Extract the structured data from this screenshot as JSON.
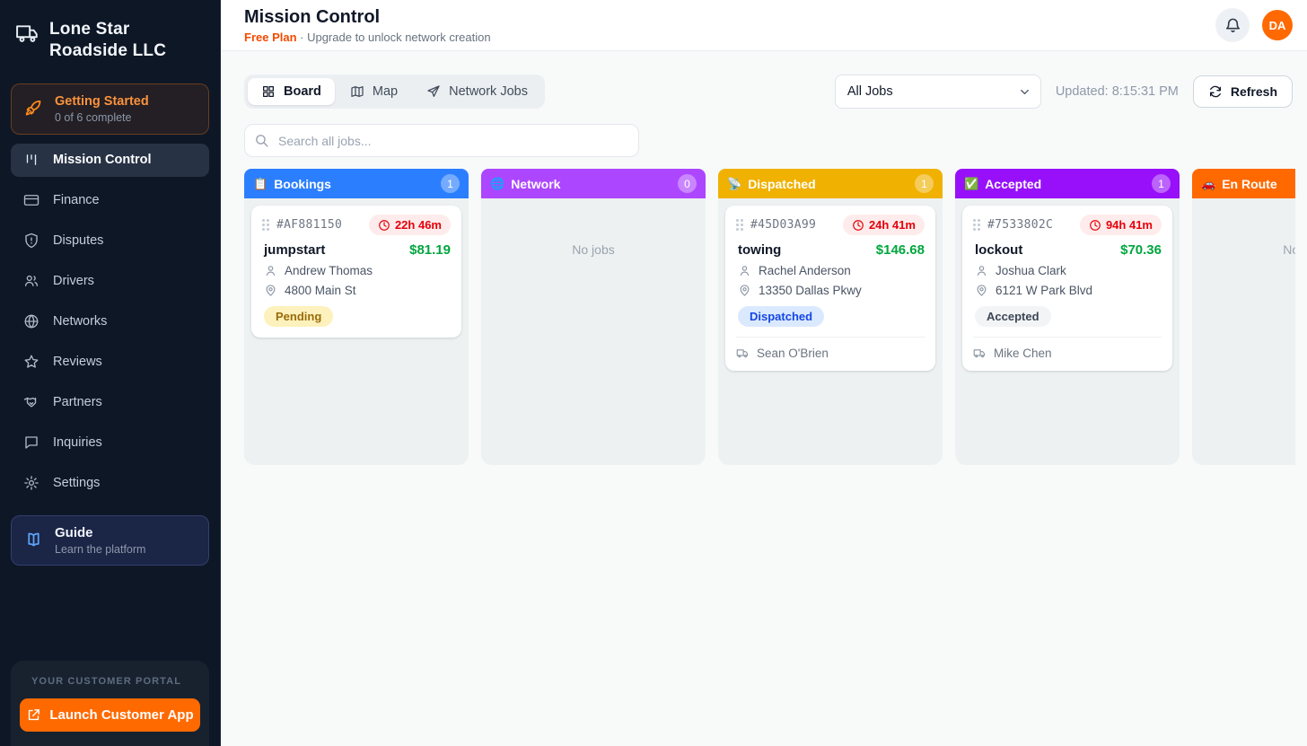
{
  "sidebar": {
    "company_name": "Lone Star Roadside LLC",
    "getting_started": {
      "title": "Getting Started",
      "subtitle": "0 of 6 complete"
    },
    "items": [
      {
        "label": "Mission Control",
        "icon": "kanban-icon",
        "active": true
      },
      {
        "label": "Finance",
        "icon": "credit-card-icon",
        "active": false
      },
      {
        "label": "Disputes",
        "icon": "shield-alert-icon",
        "active": false
      },
      {
        "label": "Drivers",
        "icon": "users-icon",
        "active": false
      },
      {
        "label": "Networks",
        "icon": "globe-icon",
        "active": false
      },
      {
        "label": "Reviews",
        "icon": "star-icon",
        "active": false
      },
      {
        "label": "Partners",
        "icon": "handshake-icon",
        "active": false
      },
      {
        "label": "Inquiries",
        "icon": "message-icon",
        "active": false
      },
      {
        "label": "Settings",
        "icon": "gear-icon",
        "active": false
      }
    ],
    "guide": {
      "title": "Guide",
      "subtitle": "Learn the platform"
    },
    "portal": {
      "label": "YOUR CUSTOMER PORTAL",
      "button_label": "Launch Customer App"
    }
  },
  "header": {
    "title": "Mission Control",
    "plan_name": "Free Plan",
    "plan_note": " · Upgrade to unlock network creation",
    "avatar_initials": "DA"
  },
  "toolbar": {
    "tabs": [
      {
        "label": "Board",
        "icon": "grid-icon",
        "active": true
      },
      {
        "label": "Map",
        "icon": "map-icon",
        "active": false
      },
      {
        "label": "Network Jobs",
        "icon": "send-icon",
        "active": false
      }
    ],
    "filter_value": "All Jobs",
    "updated_text": "Updated: 8:15:31 PM",
    "refresh_label": "Refresh",
    "search_placeholder": "Search all jobs..."
  },
  "board": {
    "empty_text": "No jobs",
    "columns": [
      {
        "name": "Bookings",
        "emoji": "📋",
        "count": "1",
        "color": "#2b7fff",
        "cards": [
          {
            "id": "#AF881150",
            "timer": "22h 46m",
            "service": "jumpstart",
            "price": "$81.19",
            "customer": "Andrew Thomas",
            "address": "4800 Main St",
            "status": "Pending",
            "status_style": "pending",
            "driver": null
          }
        ]
      },
      {
        "name": "Network",
        "emoji": "🌐",
        "count": "0",
        "color": "#ad46ff",
        "cards": []
      },
      {
        "name": "Dispatched",
        "emoji": "📡",
        "count": "1",
        "color": "#f0b100",
        "cards": [
          {
            "id": "#45D03A99",
            "timer": "24h 41m",
            "service": "towing",
            "price": "$146.68",
            "customer": "Rachel Anderson",
            "address": "13350 Dallas Pkwy",
            "status": "Dispatched",
            "status_style": "dispatched",
            "driver": "Sean O'Brien"
          }
        ]
      },
      {
        "name": "Accepted",
        "emoji": "✅",
        "count": "1",
        "color": "#9810fa",
        "cards": [
          {
            "id": "#7533802C",
            "timer": "94h 41m",
            "service": "lockout",
            "price": "$70.36",
            "customer": "Joshua Clark",
            "address": "6121 W Park Blvd",
            "status": "Accepted",
            "status_style": "accepted",
            "driver": "Mike Chen"
          }
        ]
      },
      {
        "name": "En Route",
        "emoji": "🚗",
        "count": null,
        "color": "#ff6900",
        "cards": []
      }
    ]
  }
}
